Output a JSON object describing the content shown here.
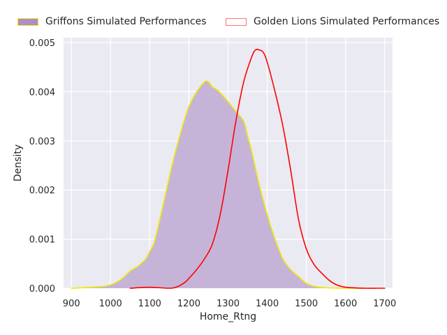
{
  "chart_data": {
    "type": "area",
    "title": "",
    "xlabel": "Home_Rtng",
    "ylabel": "Density",
    "xlim": [
      880,
      1720
    ],
    "ylim": [
      0,
      0.0051
    ],
    "grid": true,
    "legend_position": "top",
    "x_ticks": [
      900,
      1000,
      1100,
      1200,
      1300,
      1400,
      1500,
      1600,
      1700
    ],
    "x_tick_labels": [
      "900",
      "1000",
      "1100",
      "1200",
      "1300",
      "1400",
      "1500",
      "1600",
      "1700"
    ],
    "y_ticks": [
      0,
      0.001,
      0.002,
      0.003,
      0.004,
      0.005
    ],
    "y_tick_labels": [
      "0.000",
      "0.001",
      "0.002",
      "0.003",
      "0.004",
      "0.005"
    ],
    "series": [
      {
        "name": "Griffons Simulated Performances",
        "style": "filled",
        "fill_color": "#c6b4d8",
        "line_color": "#f2ea00",
        "swatch_fill": "#ad8fcb",
        "x": [
          900,
          950,
          990,
          1010,
          1030,
          1050,
          1070,
          1090,
          1100,
          1110,
          1120,
          1140,
          1160,
          1180,
          1200,
          1220,
          1240,
          1250,
          1260,
          1270,
          1280,
          1300,
          1320,
          1340,
          1350,
          1360,
          1380,
          1400,
          1420,
          1440,
          1460,
          1480,
          1500,
          1520,
          1550,
          1600,
          1650
        ],
        "y": [
          0,
          2e-05,
          5e-05,
          0.0001,
          0.0002,
          0.00035,
          0.00045,
          0.0006,
          0.00075,
          0.0009,
          0.0012,
          0.0019,
          0.0026,
          0.0032,
          0.0037,
          0.004,
          0.0042,
          0.0042,
          0.0041,
          0.00405,
          0.00398,
          0.0038,
          0.0036,
          0.0034,
          0.0031,
          0.0028,
          0.0021,
          0.0015,
          0.001,
          0.0006,
          0.00038,
          0.00024,
          0.0001,
          4e-05,
          1e-05,
          0,
          0
        ]
      },
      {
        "name": "Golden Lions Simulated Performances",
        "style": "line",
        "line_color": "#ff0000",
        "swatch_border": "#ff7070",
        "x": [
          1050,
          1100,
          1150,
          1170,
          1190,
          1200,
          1220,
          1240,
          1260,
          1280,
          1300,
          1320,
          1340,
          1360,
          1370,
          1380,
          1390,
          1400,
          1420,
          1440,
          1460,
          1480,
          1500,
          1520,
          1540,
          1560,
          1580,
          1600,
          1620,
          1650,
          1680,
          1700
        ],
        "y": [
          0,
          2e-05,
          0,
          3e-05,
          0.00012,
          0.0002,
          0.00038,
          0.0006,
          0.0009,
          0.0015,
          0.0024,
          0.0034,
          0.0042,
          0.0047,
          0.00485,
          0.00485,
          0.0048,
          0.0046,
          0.004,
          0.0033,
          0.0024,
          0.0014,
          0.0008,
          0.00048,
          0.0003,
          0.00015,
          6e-05,
          2e-05,
          1e-05,
          0,
          0,
          0
        ]
      }
    ]
  }
}
